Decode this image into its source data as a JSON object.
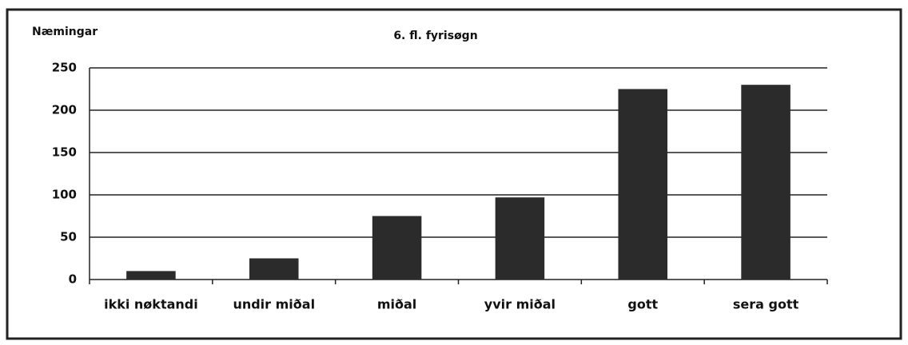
{
  "chart_data": {
    "type": "bar",
    "title": "6. fl. fyrisøgn",
    "y_label": "Næmingar",
    "categories": [
      "ikki nøktandi",
      "undir miðal",
      "miðal",
      "yvir miðal",
      "gott",
      "sera gott"
    ],
    "values": [
      10,
      25,
      75,
      97,
      225,
      230
    ],
    "color": "#2b2b2b",
    "ylim": [
      0,
      250
    ],
    "yticks": [
      0,
      50,
      100,
      150,
      200,
      250
    ],
    "grid": true
  }
}
